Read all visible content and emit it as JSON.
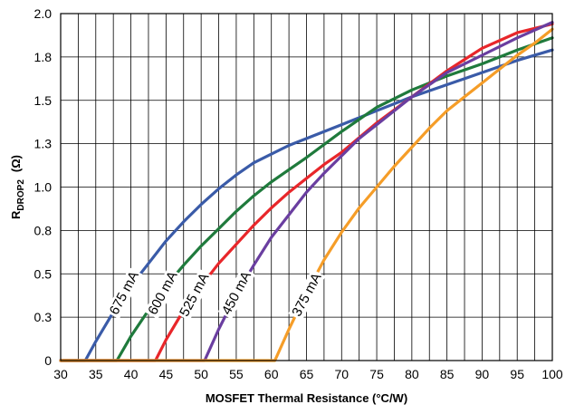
{
  "chart_data": {
    "type": "line",
    "title": "",
    "xlabel": "MOSFET Thermal Resistance (°C/W)",
    "ylabel": {
      "main": "R",
      "sub": "DROP2",
      "unit": "(Ω)"
    },
    "xlim": [
      30,
      100
    ],
    "ylim": [
      0,
      2.0
    ],
    "x_ticks": [
      30,
      35,
      40,
      45,
      50,
      55,
      60,
      65,
      70,
      75,
      80,
      85,
      90,
      95,
      100
    ],
    "y_ticks": [
      {
        "value": 0,
        "label": "0"
      },
      {
        "value": 0.25,
        "label": "0.3"
      },
      {
        "value": 0.5,
        "label": "0.5"
      },
      {
        "value": 0.75,
        "label": "0.8"
      },
      {
        "value": 1.0,
        "label": "1.0"
      },
      {
        "value": 1.25,
        "label": "1.3"
      },
      {
        "value": 1.5,
        "label": "1.5"
      },
      {
        "value": 1.75,
        "label": "1.8"
      },
      {
        "value": 2.0,
        "label": "2.0"
      }
    ],
    "grid": true,
    "legend": "none",
    "series": [
      {
        "name": "675 mA",
        "color": "#3a5ba8",
        "x": [
          30,
          33.5,
          35,
          37.5,
          40,
          42.5,
          45,
          47.5,
          50,
          52.5,
          55,
          57.5,
          60,
          62.5,
          65,
          70,
          75,
          80,
          85,
          90,
          95,
          100
        ],
        "y": [
          0,
          0,
          0.11,
          0.28,
          0.43,
          0.56,
          0.69,
          0.8,
          0.9,
          0.99,
          1.07,
          1.14,
          1.19,
          1.24,
          1.28,
          1.36,
          1.44,
          1.52,
          1.59,
          1.66,
          1.73,
          1.79
        ]
      },
      {
        "name": "600 mA",
        "color": "#1f7a3c",
        "x": [
          30,
          38,
          40,
          42.5,
          45,
          47.5,
          50,
          52.5,
          55,
          57.5,
          60,
          62.5,
          65,
          70,
          75,
          80,
          85,
          90,
          95,
          100
        ],
        "y": [
          0,
          0,
          0.14,
          0.29,
          0.43,
          0.55,
          0.66,
          0.76,
          0.86,
          0.95,
          1.03,
          1.1,
          1.17,
          1.32,
          1.46,
          1.56,
          1.64,
          1.71,
          1.79,
          1.86
        ]
      },
      {
        "name": "525 mA",
        "color": "#e8262a",
        "x": [
          30,
          43.5,
          45,
          47.5,
          50,
          52.5,
          55,
          57.5,
          60,
          62.5,
          65,
          67.5,
          70,
          75,
          80,
          85,
          90,
          95,
          100
        ],
        "y": [
          0,
          0,
          0.12,
          0.29,
          0.43,
          0.56,
          0.67,
          0.78,
          0.88,
          0.97,
          1.05,
          1.13,
          1.2,
          1.37,
          1.52,
          1.67,
          1.8,
          1.89,
          1.94
        ]
      },
      {
        "name": "450 mA",
        "color": "#6a3ea0",
        "x": [
          30,
          50.5,
          52.5,
          55,
          57.5,
          60,
          62.5,
          65,
          67.5,
          70,
          72.5,
          75,
          80,
          85,
          90,
          95,
          100
        ],
        "y": [
          0,
          0,
          0.18,
          0.38,
          0.55,
          0.71,
          0.84,
          0.97,
          1.08,
          1.18,
          1.28,
          1.36,
          1.52,
          1.66,
          1.76,
          1.86,
          1.95
        ]
      },
      {
        "name": "375 mA",
        "color": "#f59d28",
        "x": [
          30,
          60.5,
          62.5,
          65,
          67.5,
          70,
          72.5,
          75,
          77.5,
          80,
          82.5,
          85,
          87.5,
          90,
          92.5,
          95,
          97.5,
          100
        ],
        "y": [
          0,
          0,
          0.18,
          0.39,
          0.58,
          0.74,
          0.88,
          1.0,
          1.12,
          1.23,
          1.34,
          1.44,
          1.52,
          1.6,
          1.68,
          1.76,
          1.83,
          1.91
        ]
      }
    ],
    "annotations": [
      "675 mA",
      "600 mA",
      "525 mA",
      "450 mA",
      "375 mA"
    ]
  }
}
